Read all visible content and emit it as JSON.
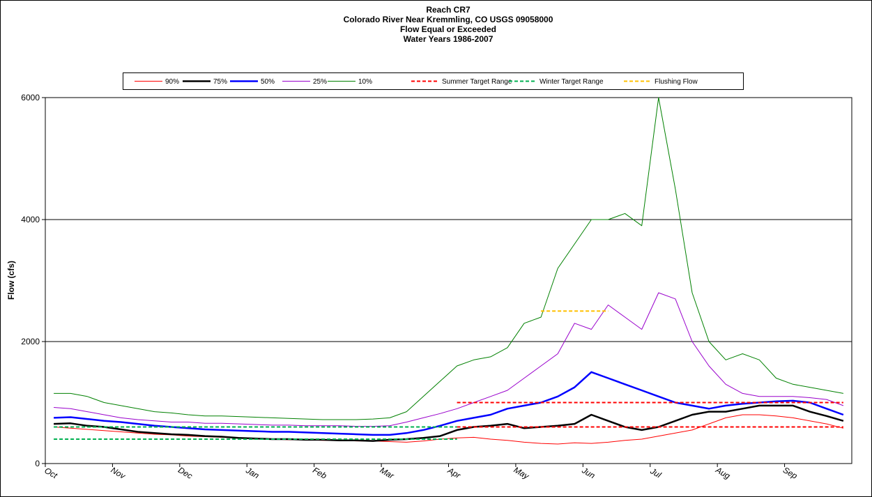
{
  "chart_data": {
    "type": "line",
    "title": [
      "Reach CR7",
      "Colorado River Near Kremmling, CO USGS 09058000",
      "Flow Equal or Exceeded",
      "Water Years 1986-2007"
    ],
    "y_label": "Flow (cfs)",
    "categories": [
      "Oct",
      null,
      null,
      null,
      "Nov",
      null,
      null,
      null,
      "Dec",
      null,
      null,
      null,
      "Jan",
      null,
      null,
      null,
      "Feb",
      null,
      null,
      null,
      "Mar",
      null,
      null,
      null,
      "Apr",
      null,
      null,
      null,
      "May",
      null,
      null,
      null,
      "Jun",
      null,
      null,
      null,
      "Jul",
      null,
      null,
      null,
      "Aug",
      null,
      null,
      null,
      "Sep",
      null,
      null,
      null
    ],
    "ylim": [
      0,
      6000
    ],
    "yticks": [
      0,
      2000,
      4000,
      6000
    ],
    "grid": true,
    "series": [
      {
        "name": "90%",
        "color": "#ff0000",
        "width": 1,
        "values": [
          600,
          580,
          560,
          540,
          520,
          500,
          480,
          470,
          450,
          440,
          430,
          420,
          400,
          400,
          390,
          390,
          380,
          380,
          370,
          370,
          360,
          350,
          370,
          400,
          420,
          430,
          400,
          380,
          350,
          330,
          320,
          340,
          330,
          350,
          380,
          400,
          450,
          500,
          550,
          650,
          750,
          800,
          800,
          780,
          750,
          700,
          650,
          580
        ]
      },
      {
        "name": "75%",
        "color": "#000000",
        "width": 2.5,
        "values": [
          650,
          660,
          620,
          600,
          560,
          520,
          500,
          480,
          470,
          450,
          440,
          420,
          410,
          400,
          400,
          390,
          390,
          380,
          380,
          370,
          390,
          400,
          420,
          450,
          550,
          600,
          620,
          650,
          580,
          600,
          620,
          650,
          800,
          700,
          600,
          550,
          600,
          700,
          800,
          850,
          850,
          900,
          950,
          950,
          950,
          850,
          780,
          700
        ]
      },
      {
        "name": "50%",
        "color": "#0000ff",
        "width": 2.5,
        "values": [
          750,
          760,
          730,
          700,
          680,
          650,
          620,
          600,
          580,
          560,
          550,
          540,
          530,
          520,
          520,
          510,
          500,
          490,
          480,
          470,
          470,
          500,
          550,
          620,
          700,
          750,
          800,
          900,
          950,
          1000,
          1100,
          1250,
          1500,
          1400,
          1300,
          1200,
          1100,
          1000,
          950,
          900,
          950,
          980,
          1000,
          1020,
          1030,
          1000,
          900,
          800
        ]
      },
      {
        "name": "25%",
        "color": "#9900cc",
        "width": 1,
        "values": [
          920,
          900,
          850,
          800,
          750,
          720,
          700,
          680,
          680,
          660,
          660,
          650,
          640,
          630,
          630,
          620,
          620,
          620,
          610,
          610,
          620,
          680,
          750,
          820,
          900,
          1000,
          1100,
          1200,
          1400,
          1600,
          1800,
          2300,
          2200,
          2600,
          2400,
          2200,
          2800,
          2700,
          2000,
          1600,
          1300,
          1150,
          1100,
          1100,
          1100,
          1080,
          1050,
          950
        ]
      },
      {
        "name": "10%",
        "color": "#008000",
        "width": 1,
        "values": [
          1150,
          1150,
          1100,
          1000,
          950,
          900,
          850,
          830,
          800,
          780,
          780,
          770,
          760,
          750,
          740,
          730,
          720,
          720,
          720,
          730,
          750,
          850,
          1100,
          1350,
          1600,
          1700,
          1750,
          1900,
          2300,
          2400,
          3200,
          3600,
          4000,
          4000,
          4100,
          3900,
          6000,
          4500,
          2800,
          2000,
          1700,
          1800,
          1700,
          1400,
          1300,
          1250,
          1200,
          1150
        ]
      },
      {
        "name": "Summer Target Range",
        "color": "#ff0000",
        "width": 2,
        "dashed": true,
        "values": [
          null,
          null,
          null,
          null,
          null,
          null,
          null,
          null,
          null,
          null,
          null,
          null,
          null,
          null,
          null,
          null,
          null,
          null,
          null,
          null,
          null,
          null,
          null,
          null,
          1000,
          1000,
          1000,
          1000,
          1000,
          1000,
          1000,
          1000,
          1000,
          1000,
          1000,
          1000,
          1000,
          1000,
          1000,
          1000,
          1000,
          1000,
          1000,
          1000,
          1000,
          1000,
          1000,
          1000
        ],
        "values_low": [
          null,
          null,
          null,
          null,
          null,
          null,
          null,
          null,
          null,
          null,
          null,
          null,
          null,
          null,
          null,
          null,
          null,
          null,
          null,
          null,
          null,
          null,
          null,
          null,
          600,
          600,
          600,
          600,
          600,
          600,
          600,
          600,
          600,
          600,
          600,
          600,
          600,
          600,
          600,
          600,
          600,
          600,
          600,
          600,
          600,
          600,
          600,
          600
        ]
      },
      {
        "name": "Winter Target Range",
        "color": "#00b050",
        "width": 2,
        "dashed": true,
        "values": [
          600,
          600,
          600,
          600,
          600,
          600,
          600,
          600,
          600,
          600,
          600,
          600,
          600,
          600,
          600,
          600,
          600,
          600,
          600,
          600,
          600,
          600,
          600,
          600,
          600,
          null,
          null,
          null,
          null,
          null,
          null,
          null,
          null,
          null,
          null,
          null,
          null,
          null,
          null,
          null,
          null,
          null,
          null,
          null,
          null,
          null,
          null,
          null
        ],
        "values_low": [
          400,
          400,
          400,
          400,
          400,
          400,
          400,
          400,
          400,
          400,
          400,
          400,
          400,
          400,
          400,
          400,
          400,
          400,
          400,
          400,
          400,
          400,
          400,
          400,
          400,
          null,
          null,
          null,
          null,
          null,
          null,
          null,
          null,
          null,
          null,
          null,
          null,
          null,
          null,
          null,
          null,
          null,
          null,
          null,
          null,
          null,
          null,
          null
        ]
      },
      {
        "name": "Flushing Flow",
        "color": "#ffc000",
        "width": 2,
        "dashed": true,
        "values": [
          null,
          null,
          null,
          null,
          null,
          null,
          null,
          null,
          null,
          null,
          null,
          null,
          null,
          null,
          null,
          null,
          null,
          null,
          null,
          null,
          null,
          null,
          null,
          null,
          null,
          null,
          null,
          null,
          null,
          2500,
          2500,
          2500,
          2500,
          2500,
          null,
          null,
          null,
          null,
          null,
          null,
          null,
          null,
          null,
          null,
          null,
          null,
          null,
          null
        ]
      }
    ]
  }
}
